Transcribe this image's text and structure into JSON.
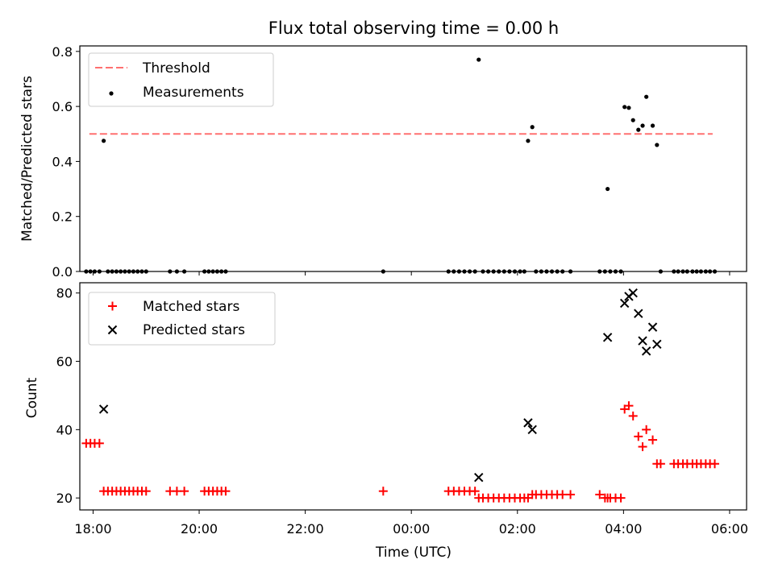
{
  "figure": {
    "title": "Flux total observing time = 0.00 h"
  },
  "chart_data": [
    {
      "type": "scatter",
      "ylabel": "Matched/Predicted stars",
      "ylim": [
        0,
        0.82
      ],
      "xlim_hours": [
        17.75,
        30.32
      ],
      "yticks": [
        0.0,
        0.2,
        0.4,
        0.6,
        0.8
      ],
      "ytick_labels": [
        "0.0",
        "0.2",
        "0.4",
        "0.6",
        "0.8"
      ],
      "legend": {
        "placement": "upper-left",
        "entries": [
          {
            "label": "Threshold",
            "style": "dashed-line",
            "color": "#ff7070"
          },
          {
            "label": "Measurements",
            "style": "dot",
            "color": "#000000"
          }
        ]
      },
      "threshold": {
        "name": "Threshold",
        "y": 0.5,
        "x_range": [
          17.93,
          29.68
        ],
        "color": "#ff7070"
      },
      "series": [
        {
          "name": "Measurements",
          "color": "#000000",
          "points": [
            [
              17.87,
              0
            ],
            [
              17.95,
              0
            ],
            [
              18.03,
              0
            ],
            [
              18.12,
              0
            ],
            [
              18.2,
              0.475
            ],
            [
              18.28,
              0
            ],
            [
              18.36,
              0
            ],
            [
              18.44,
              0
            ],
            [
              18.52,
              0
            ],
            [
              18.6,
              0
            ],
            [
              18.68,
              0
            ],
            [
              18.76,
              0
            ],
            [
              18.84,
              0
            ],
            [
              18.92,
              0
            ],
            [
              19.0,
              0
            ],
            [
              19.45,
              0
            ],
            [
              19.58,
              0
            ],
            [
              19.72,
              0
            ],
            [
              20.1,
              0
            ],
            [
              20.18,
              0
            ],
            [
              20.26,
              0
            ],
            [
              20.34,
              0
            ],
            [
              20.42,
              0
            ],
            [
              20.5,
              0
            ],
            [
              23.47,
              0
            ],
            [
              24.7,
              0
            ],
            [
              24.8,
              0
            ],
            [
              24.9,
              0
            ],
            [
              25.0,
              0
            ],
            [
              25.1,
              0
            ],
            [
              25.2,
              0
            ],
            [
              25.27,
              0.77
            ],
            [
              25.35,
              0
            ],
            [
              25.45,
              0
            ],
            [
              25.55,
              0
            ],
            [
              25.65,
              0
            ],
            [
              25.75,
              0
            ],
            [
              25.85,
              0
            ],
            [
              25.95,
              0
            ],
            [
              26.05,
              0
            ],
            [
              26.13,
              0
            ],
            [
              26.2,
              0.475
            ],
            [
              26.28,
              0.525
            ],
            [
              26.35,
              0
            ],
            [
              26.45,
              0
            ],
            [
              26.55,
              0
            ],
            [
              26.65,
              0
            ],
            [
              26.75,
              0
            ],
            [
              26.85,
              0
            ],
            [
              27.0,
              0
            ],
            [
              27.55,
              0
            ],
            [
              27.65,
              0
            ],
            [
              27.7,
              0.3
            ],
            [
              27.75,
              0
            ],
            [
              27.85,
              0
            ],
            [
              27.95,
              0
            ],
            [
              28.02,
              0.598
            ],
            [
              28.1,
              0.595
            ],
            [
              28.18,
              0.55
            ],
            [
              28.28,
              0.515
            ],
            [
              28.36,
              0.53
            ],
            [
              28.43,
              0.635
            ],
            [
              28.55,
              0.53
            ],
            [
              28.63,
              0.46
            ],
            [
              28.7,
              0
            ],
            [
              28.95,
              0
            ],
            [
              29.03,
              0
            ],
            [
              29.12,
              0
            ],
            [
              29.2,
              0
            ],
            [
              29.3,
              0
            ],
            [
              29.38,
              0
            ],
            [
              29.46,
              0
            ],
            [
              29.55,
              0
            ],
            [
              29.63,
              0
            ],
            [
              29.72,
              0
            ]
          ]
        }
      ]
    },
    {
      "type": "scatter",
      "xlabel": "Time (UTC)",
      "ylabel": "Count",
      "ylim": [
        16.5,
        83
      ],
      "xlim_hours": [
        17.75,
        30.32
      ],
      "yticks": [
        20,
        40,
        60,
        80
      ],
      "ytick_labels": [
        "20",
        "40",
        "60",
        "80"
      ],
      "xticks_hours": [
        18,
        20,
        22,
        24,
        26,
        28,
        30
      ],
      "xtick_labels": [
        "18:00",
        "20:00",
        "22:00",
        "00:00",
        "02:00",
        "04:00",
        "06:00"
      ],
      "legend": {
        "placement": "upper-left",
        "entries": [
          {
            "label": "Matched stars",
            "style": "plus",
            "color": "#ff0000"
          },
          {
            "label": "Predicted stars",
            "style": "cross",
            "color": "#000000"
          }
        ]
      },
      "series": [
        {
          "name": "Matched stars",
          "marker": "plus",
          "color": "#ff0000",
          "points": [
            [
              17.87,
              36
            ],
            [
              17.95,
              36
            ],
            [
              18.03,
              36
            ],
            [
              18.12,
              36
            ],
            [
              18.2,
              22
            ],
            [
              18.28,
              22
            ],
            [
              18.36,
              22
            ],
            [
              18.44,
              22
            ],
            [
              18.52,
              22
            ],
            [
              18.6,
              22
            ],
            [
              18.68,
              22
            ],
            [
              18.76,
              22
            ],
            [
              18.84,
              22
            ],
            [
              18.92,
              22
            ],
            [
              19.0,
              22
            ],
            [
              19.45,
              22
            ],
            [
              19.58,
              22
            ],
            [
              19.72,
              22
            ],
            [
              20.1,
              22
            ],
            [
              20.18,
              22
            ],
            [
              20.26,
              22
            ],
            [
              20.34,
              22
            ],
            [
              20.42,
              22
            ],
            [
              20.5,
              22
            ],
            [
              23.47,
              22
            ],
            [
              24.7,
              22
            ],
            [
              24.8,
              22
            ],
            [
              24.9,
              22
            ],
            [
              25.0,
              22
            ],
            [
              25.1,
              22
            ],
            [
              25.2,
              22
            ],
            [
              25.27,
              20
            ],
            [
              25.35,
              20
            ],
            [
              25.45,
              20
            ],
            [
              25.55,
              20
            ],
            [
              25.65,
              20
            ],
            [
              25.75,
              20
            ],
            [
              25.85,
              20
            ],
            [
              25.95,
              20
            ],
            [
              26.05,
              20
            ],
            [
              26.13,
              20
            ],
            [
              26.2,
              20
            ],
            [
              26.28,
              21
            ],
            [
              26.35,
              21
            ],
            [
              26.45,
              21
            ],
            [
              26.55,
              21
            ],
            [
              26.65,
              21
            ],
            [
              26.75,
              21
            ],
            [
              26.85,
              21
            ],
            [
              27.0,
              21
            ],
            [
              27.55,
              21
            ],
            [
              27.65,
              20
            ],
            [
              27.7,
              20
            ],
            [
              27.75,
              20
            ],
            [
              27.85,
              20
            ],
            [
              27.95,
              20
            ],
            [
              28.02,
              46
            ],
            [
              28.1,
              47
            ],
            [
              28.18,
              44
            ],
            [
              28.28,
              38
            ],
            [
              28.36,
              35
            ],
            [
              28.43,
              40
            ],
            [
              28.55,
              37
            ],
            [
              28.63,
              30
            ],
            [
              28.7,
              30
            ],
            [
              28.95,
              30
            ],
            [
              29.03,
              30
            ],
            [
              29.12,
              30
            ],
            [
              29.2,
              30
            ],
            [
              29.3,
              30
            ],
            [
              29.38,
              30
            ],
            [
              29.46,
              30
            ],
            [
              29.55,
              30
            ],
            [
              29.63,
              30
            ],
            [
              29.72,
              30
            ]
          ]
        },
        {
          "name": "Predicted stars",
          "marker": "cross",
          "color": "#000000",
          "points": [
            [
              18.2,
              46
            ],
            [
              25.27,
              26
            ],
            [
              26.2,
              42
            ],
            [
              26.28,
              40
            ],
            [
              27.7,
              67
            ],
            [
              28.02,
              77
            ],
            [
              28.1,
              79
            ],
            [
              28.18,
              80
            ],
            [
              28.28,
              74
            ],
            [
              28.36,
              66
            ],
            [
              28.43,
              63
            ],
            [
              28.55,
              70
            ],
            [
              28.63,
              65
            ]
          ]
        }
      ]
    }
  ]
}
